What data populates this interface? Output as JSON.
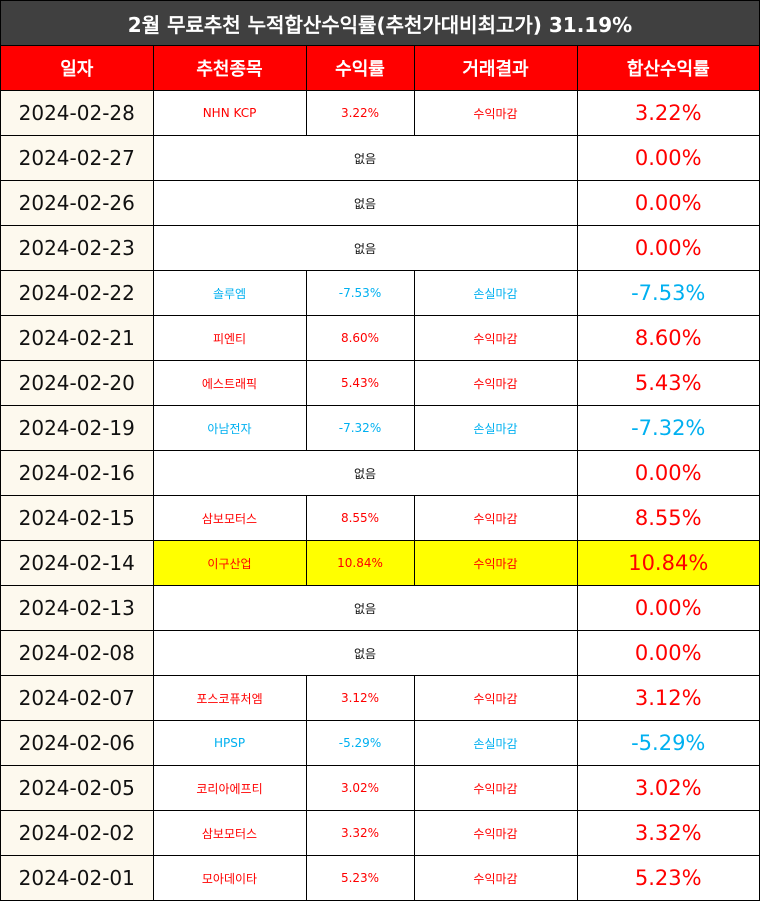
{
  "title": "2월 무료추천 누적합산수익률(추천가대비최고가) 31.19%",
  "headers": [
    "일자",
    "추천종목",
    "수익률",
    "거래결과",
    "합산수익률"
  ],
  "colors": {
    "positive": "#ff0000",
    "negative": "#00b0f0",
    "highlight": "#ffff00",
    "header": "#ff0000",
    "title_bg": "#404040"
  },
  "rows": [
    {
      "date": "2024-02-28",
      "stock": "NHN KCP",
      "return": "3.22%",
      "result": "수익마감",
      "total": "3.22%",
      "tone": "pos"
    },
    {
      "date": "2024-02-27",
      "none": "없음",
      "total": "0.00%",
      "tone": "pos"
    },
    {
      "date": "2024-02-26",
      "none": "없음",
      "total": "0.00%",
      "tone": "pos"
    },
    {
      "date": "2024-02-23",
      "none": "없음",
      "total": "0.00%",
      "tone": "pos"
    },
    {
      "date": "2024-02-22",
      "stock": "솔루엠",
      "return": "-7.53%",
      "result": "손실마감",
      "total": "-7.53%",
      "tone": "neg"
    },
    {
      "date": "2024-02-21",
      "stock": "피엔티",
      "return": "8.60%",
      "result": "수익마감",
      "total": "8.60%",
      "tone": "pos"
    },
    {
      "date": "2024-02-20",
      "stock": "에스트래픽",
      "return": "5.43%",
      "result": "수익마감",
      "total": "5.43%",
      "tone": "pos"
    },
    {
      "date": "2024-02-19",
      "stock": "아남전자",
      "return": "-7.32%",
      "result": "손실마감",
      "total": "-7.32%",
      "tone": "neg"
    },
    {
      "date": "2024-02-16",
      "none": "없음",
      "total": "0.00%",
      "tone": "pos"
    },
    {
      "date": "2024-02-15",
      "stock": "삼보모터스",
      "return": "8.55%",
      "result": "수익마감",
      "total": "8.55%",
      "tone": "pos"
    },
    {
      "date": "2024-02-14",
      "stock": "이구산업",
      "return": "10.84%",
      "result": "수익마감",
      "total": "10.84%",
      "tone": "pos",
      "highlight": true
    },
    {
      "date": "2024-02-13",
      "none": "없음",
      "total": "0.00%",
      "tone": "pos"
    },
    {
      "date": "2024-02-08",
      "none": "없음",
      "total": "0.00%",
      "tone": "pos"
    },
    {
      "date": "2024-02-07",
      "stock": "포스코퓨처엠",
      "return": "3.12%",
      "result": "수익마감",
      "total": "3.12%",
      "tone": "pos"
    },
    {
      "date": "2024-02-06",
      "stock": "HPSP",
      "return": "-5.29%",
      "result": "손실마감",
      "total": "-5.29%",
      "tone": "neg"
    },
    {
      "date": "2024-02-05",
      "stock": "코리아에프티",
      "return": "3.02%",
      "result": "수익마감",
      "total": "3.02%",
      "tone": "pos"
    },
    {
      "date": "2024-02-02",
      "stock": "삼보모터스",
      "return": "3.32%",
      "result": "수익마감",
      "total": "3.32%",
      "tone": "pos"
    },
    {
      "date": "2024-02-01",
      "stock": "모아데이타",
      "return": "5.23%",
      "result": "수익마감",
      "total": "5.23%",
      "tone": "pos"
    }
  ]
}
